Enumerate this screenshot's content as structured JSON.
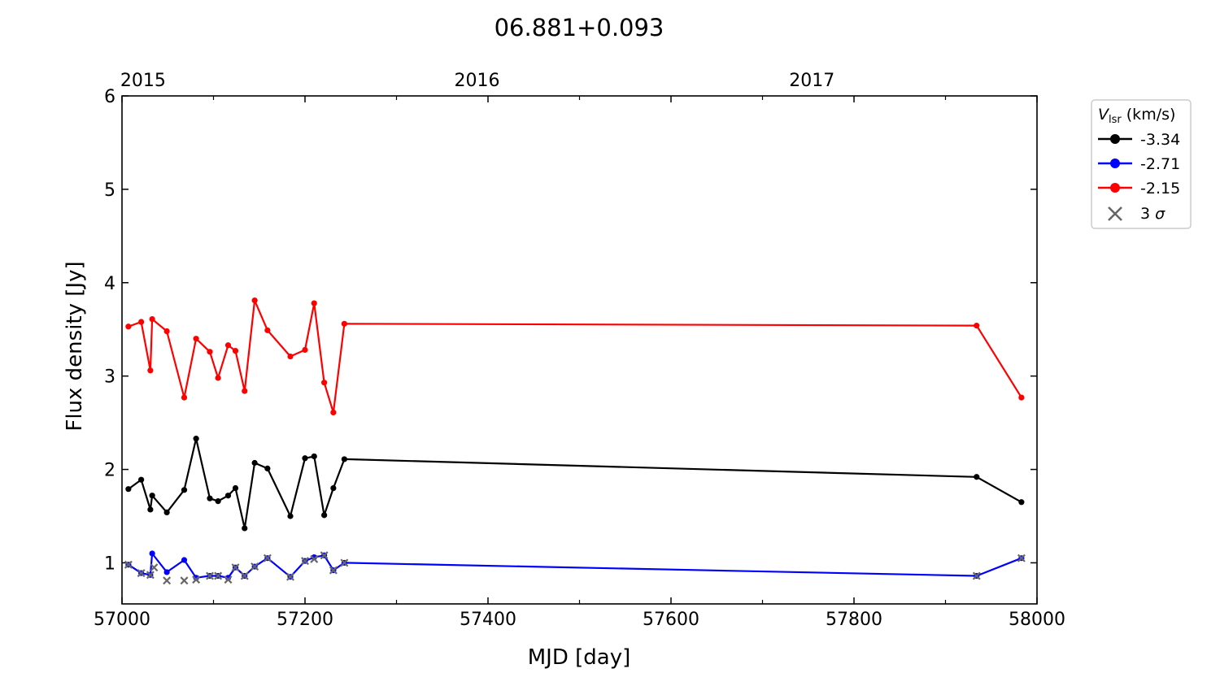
{
  "chart_data": {
    "type": "line",
    "title": "06.881+0.093",
    "xlabel": "MJD [day]",
    "ylabel": "Flux density [Jy]",
    "xlim": [
      57000,
      58000
    ],
    "ylim": [
      0.56,
      6
    ],
    "x_major_ticks": [
      57000,
      57200,
      57400,
      57600,
      57800,
      58000
    ],
    "x_minor_ticks": [
      57100,
      57300,
      57500,
      57700,
      57900
    ],
    "y_ticks": [
      1,
      2,
      3,
      4,
      5,
      6
    ],
    "top_axis": [
      {
        "label": "2015",
        "mjd": 57023
      },
      {
        "label": "2016",
        "mjd": 57388
      },
      {
        "label": "2017",
        "mjd": 57754
      }
    ],
    "grid": false,
    "legend": {
      "placement": "outside-top-right",
      "title_main": "V",
      "title_sub": "lsr",
      "title_rest": " (km/s)",
      "sigma_label_prefix": "3 ",
      "sigma_label_symbol": "σ"
    },
    "x": [
      57007,
      57021,
      57031,
      57033,
      57049,
      57068,
      57081,
      57096,
      57105,
      57116,
      57124,
      57134,
      57145,
      57159,
      57184,
      57200,
      57210,
      57221,
      57231,
      57243,
      57934,
      57983
    ],
    "series": [
      {
        "name": "-3.34",
        "color": "#000000",
        "values": [
          1.79,
          1.89,
          1.57,
          1.72,
          1.54,
          1.78,
          2.33,
          1.69,
          1.66,
          1.72,
          1.8,
          1.37,
          2.07,
          2.01,
          1.5,
          2.12,
          2.14,
          1.51,
          1.8,
          2.11,
          1.92,
          1.65
        ]
      },
      {
        "name": "-2.71",
        "color": "#0000ff",
        "values": [
          0.98,
          0.89,
          0.87,
          1.1,
          0.9,
          1.03,
          0.84,
          0.86,
          0.86,
          0.84,
          0.95,
          0.86,
          0.96,
          1.05,
          0.85,
          1.02,
          1.06,
          1.08,
          0.92,
          1.0,
          0.86,
          1.05
        ]
      },
      {
        "name": "-2.15",
        "color": "#ff0000",
        "values": [
          3.53,
          3.58,
          3.06,
          3.61,
          3.48,
          2.77,
          3.4,
          3.26,
          2.98,
          3.33,
          3.27,
          2.84,
          3.81,
          3.49,
          3.21,
          3.28,
          3.78,
          2.93,
          2.61,
          3.56,
          3.54,
          2.77
        ]
      }
    ],
    "sigma_color": "#666666",
    "sigma_points": [
      {
        "x": 57007,
        "y": 0.98
      },
      {
        "x": 57021,
        "y": 0.89
      },
      {
        "x": 57031,
        "y": 0.87
      },
      {
        "x": 57035,
        "y": 0.95
      },
      {
        "x": 57049,
        "y": 0.81
      },
      {
        "x": 57068,
        "y": 0.81
      },
      {
        "x": 57081,
        "y": 0.82
      },
      {
        "x": 57096,
        "y": 0.86
      },
      {
        "x": 57105,
        "y": 0.86
      },
      {
        "x": 57116,
        "y": 0.82
      },
      {
        "x": 57124,
        "y": 0.95
      },
      {
        "x": 57134,
        "y": 0.86
      },
      {
        "x": 57145,
        "y": 0.96
      },
      {
        "x": 57159,
        "y": 1.05
      },
      {
        "x": 57184,
        "y": 0.85
      },
      {
        "x": 57200,
        "y": 1.02
      },
      {
        "x": 57210,
        "y": 1.04
      },
      {
        "x": 57221,
        "y": 1.08
      },
      {
        "x": 57231,
        "y": 0.92
      },
      {
        "x": 57243,
        "y": 1.0
      },
      {
        "x": 57934,
        "y": 0.86
      },
      {
        "x": 57983,
        "y": 1.05
      }
    ]
  }
}
